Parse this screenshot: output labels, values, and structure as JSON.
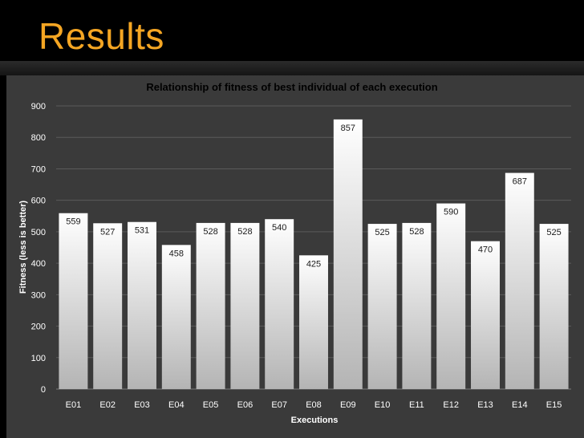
{
  "slide": {
    "title": "Results"
  },
  "chart_data": {
    "type": "bar",
    "title": "Relationship of fitness of best individual of each execution",
    "xlabel": "Executions",
    "ylabel": "Fitness (less is better)",
    "categories": [
      "E01",
      "E02",
      "E03",
      "E04",
      "E05",
      "E06",
      "E07",
      "E08",
      "E09",
      "E10",
      "E11",
      "E12",
      "E13",
      "E14",
      "E15"
    ],
    "values": [
      559,
      527,
      531,
      458,
      528,
      528,
      540,
      425,
      857,
      525,
      528,
      590,
      470,
      687,
      525
    ],
    "ylim": [
      0,
      900
    ],
    "yticks": [
      0,
      100,
      200,
      300,
      400,
      500,
      600,
      700,
      800,
      900
    ],
    "grid": true,
    "legend": "none",
    "colors": {
      "bar_top": "#ffffff",
      "bar_bottom": "#b0b0b0",
      "plot_bg": "#3a3a3a",
      "grid": "#5a5a5a",
      "title_accent": "#f5a623"
    }
  }
}
